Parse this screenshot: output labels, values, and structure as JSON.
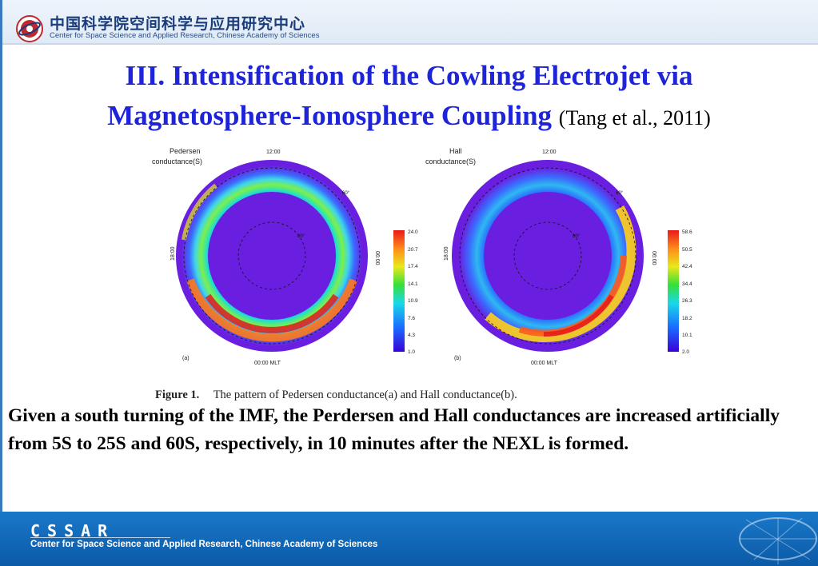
{
  "header": {
    "institute_cn": "中国科学院空间科学与应用研究中心",
    "institute_en": "Center for Space Science and Applied Research, Chinese Academy of Sciences"
  },
  "title": {
    "line1": "III.  Intensification of the Cowling Electrojet via",
    "line2": "Magnetosphere-Ionosphere Coupling",
    "citation": "(Tang et al., 2011)"
  },
  "figure": {
    "panels": [
      {
        "label": "(a)",
        "name_line1": "Pedersen",
        "name_line2": "conductance(S)",
        "top_label": "12:00",
        "bottom_label": "00:00 MLT",
        "left_label": "18:00",
        "right_label": "06:00",
        "lat_outer": "60°",
        "lat_inner": "80°",
        "colorbar": [
          "24.0",
          "20.7",
          "17.4",
          "14.1",
          "10.9",
          "7.6",
          "4.3",
          "1.0"
        ]
      },
      {
        "label": "(b)",
        "name_line1": "Hall",
        "name_line2": "conductance(S)",
        "top_label": "12:00",
        "bottom_label": "00:00 MLT",
        "left_label": "18:00",
        "right_label": "06:00",
        "lat_outer": "60°",
        "lat_inner": "80°",
        "colorbar": [
          "58.6",
          "50.5",
          "42.4",
          "34.4",
          "26.3",
          "18.2",
          "10.1",
          "2.0"
        ]
      }
    ],
    "caption_label": "Figure 1.",
    "caption_text": "The pattern of Pedersen conductance(a) and Hall conductance(b)."
  },
  "body_text": "Given a south turning of the IMF, the Perdersen and Hall conductances are increased artificially from 5S to 25S and 60S, respectively, in 10 minutes after the NEXL is formed.",
  "footer": {
    "logo_text": "CSSAR",
    "text": "Center for Space Science and Applied Research, Chinese Academy of Sciences"
  }
}
